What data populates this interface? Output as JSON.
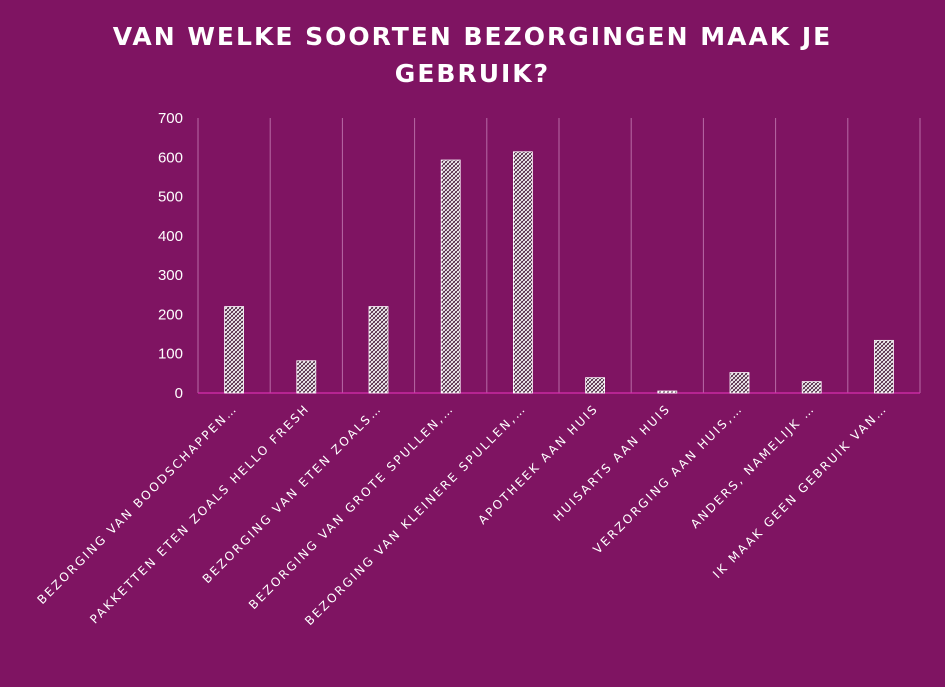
{
  "chart_data": {
    "type": "bar",
    "title": "VAN WELKE SOORTEN BEZORGINGEN MAAK JE GEBRUIK?",
    "xlabel": "",
    "ylabel": "",
    "ylim": [
      0,
      700
    ],
    "yticks": [
      0,
      100,
      200,
      300,
      400,
      500,
      600,
      700
    ],
    "grid": "vertical",
    "legend": "none",
    "categories": [
      "BEZORGING VAN BOODSCHAPPEN…",
      "PAKKETTEN ETEN ZOALS HELLO FRESH",
      "BEZORGING VAN ETEN ZOALS…",
      "BEZORGING VAN GROTE SPULLEN,…",
      "BEZORGING VAN KLEINERE SPULLEN,…",
      "APOTHEEK AAN HUIS",
      "HUISARTS AAN HUIS",
      "VERZORGING AAN HUIS,…",
      "ANDERS, NAMELIJK …",
      "IK MAAK GEEN GEBRUIK VAN…"
    ],
    "values": [
      220,
      82,
      220,
      593,
      614,
      39,
      5,
      52,
      29,
      134
    ],
    "colors": {
      "background": "#7f1462",
      "bar_fill": "#ffffff",
      "bar_pattern": "#3a0a2c",
      "gridline": "#b86aa6",
      "axis_line": "#d62fae",
      "text": "#ffffff"
    }
  }
}
